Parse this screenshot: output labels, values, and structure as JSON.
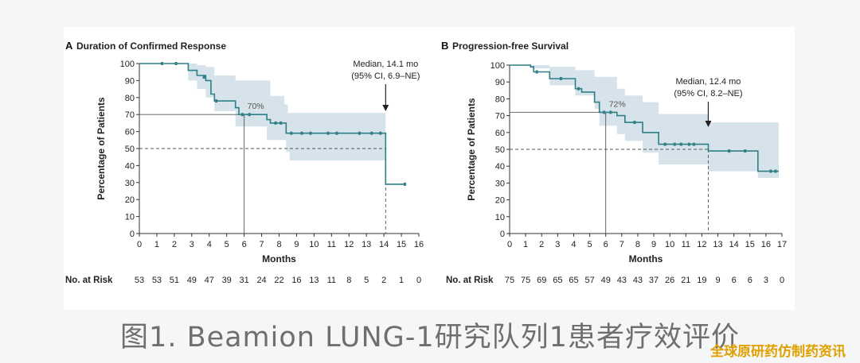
{
  "caption": "图1. Beamion LUNG-1研究队列1患者疗效评价",
  "watermark": "全球原研药仿制药资讯",
  "colors": {
    "line": "#2f7f86",
    "band": "#d6e3ea",
    "axis": "#333333",
    "ref": "#555555"
  },
  "chart_data": [
    {
      "type": "line",
      "panel": "A",
      "title": "Duration of Confirmed Response",
      "xlabel": "Months",
      "ylabel": "Percentage of Patients",
      "xlim": [
        0,
        16
      ],
      "ylim": [
        0,
        100
      ],
      "xticks": [
        0,
        1,
        2,
        3,
        4,
        5,
        6,
        7,
        8,
        9,
        10,
        11,
        12,
        13,
        14,
        15,
        16
      ],
      "yticks": [
        0,
        10,
        20,
        30,
        40,
        50,
        60,
        70,
        80,
        90,
        100
      ],
      "curve": [
        [
          0,
          100
        ],
        [
          2.8,
          100
        ],
        [
          2.8,
          96
        ],
        [
          3.3,
          96
        ],
        [
          3.3,
          93
        ],
        [
          3.8,
          93
        ],
        [
          3.8,
          90
        ],
        [
          4.1,
          90
        ],
        [
          4.1,
          82
        ],
        [
          4.3,
          82
        ],
        [
          4.3,
          78
        ],
        [
          5.5,
          78
        ],
        [
          5.5,
          74
        ],
        [
          5.7,
          74
        ],
        [
          5.7,
          70
        ],
        [
          7.3,
          70
        ],
        [
          7.3,
          67
        ],
        [
          7.5,
          67
        ],
        [
          7.5,
          65
        ],
        [
          8.4,
          65
        ],
        [
          8.4,
          59
        ],
        [
          14.1,
          59
        ],
        [
          14.1,
          29
        ],
        [
          15.2,
          29
        ]
      ],
      "ci_upper": [
        [
          0,
          100
        ],
        [
          2.8,
          100
        ],
        [
          3.3,
          99
        ],
        [
          3.8,
          98
        ],
        [
          4.3,
          93
        ],
        [
          5.5,
          90
        ],
        [
          7.5,
          81
        ],
        [
          8.3,
          76
        ],
        [
          8.5,
          71
        ],
        [
          14.1,
          71
        ]
      ],
      "ci_lower": [
        [
          0,
          100
        ],
        [
          2.8,
          90
        ],
        [
          3.3,
          85
        ],
        [
          3.8,
          80
        ],
        [
          4.3,
          72
        ],
        [
          5.5,
          63
        ],
        [
          7.3,
          55
        ],
        [
          8.4,
          48
        ],
        [
          8.6,
          43
        ],
        [
          14.1,
          43
        ]
      ],
      "censored": [
        [
          1.3,
          100
        ],
        [
          2.1,
          100
        ],
        [
          3.7,
          92
        ],
        [
          4.4,
          78
        ],
        [
          5.9,
          70
        ],
        [
          6.3,
          70
        ],
        [
          7.8,
          65
        ],
        [
          8.1,
          65
        ],
        [
          8.7,
          59
        ],
        [
          9.3,
          59
        ],
        [
          9.8,
          59
        ],
        [
          10.8,
          59
        ],
        [
          11.3,
          59
        ],
        [
          12.6,
          59
        ],
        [
          13.3,
          59
        ],
        [
          13.8,
          59
        ],
        [
          15.2,
          29
        ]
      ],
      "reference": {
        "y": 70,
        "x": 6,
        "label": "70%"
      },
      "median": {
        "x": 14.1,
        "y": 50,
        "label_line1": "Median, 14.1 mo",
        "label_line2": "(95% CI, 6.9–NE)"
      },
      "risk_label": "No. at Risk",
      "at_risk": [
        53,
        53,
        51,
        49,
        47,
        39,
        31,
        24,
        22,
        16,
        13,
        11,
        8,
        5,
        2,
        1,
        0
      ]
    },
    {
      "type": "line",
      "panel": "B",
      "title": "Progression-free Survival",
      "xlabel": "Months",
      "ylabel": "Percentage of Patients",
      "xlim": [
        0,
        17
      ],
      "ylim": [
        0,
        100
      ],
      "xticks": [
        0,
        1,
        2,
        3,
        4,
        5,
        6,
        7,
        8,
        9,
        10,
        11,
        12,
        13,
        14,
        15,
        16,
        17
      ],
      "yticks": [
        0,
        10,
        20,
        30,
        40,
        50,
        60,
        70,
        80,
        90,
        100
      ],
      "curve": [
        [
          0,
          100
        ],
        [
          1.3,
          100
        ],
        [
          1.3,
          99
        ],
        [
          1.5,
          99
        ],
        [
          1.5,
          96
        ],
        [
          2.5,
          96
        ],
        [
          2.5,
          92
        ],
        [
          4.1,
          92
        ],
        [
          4.1,
          86
        ],
        [
          4.5,
          86
        ],
        [
          4.5,
          84
        ],
        [
          5.3,
          84
        ],
        [
          5.3,
          78
        ],
        [
          5.6,
          78
        ],
        [
          5.6,
          72
        ],
        [
          6.7,
          72
        ],
        [
          6.7,
          70
        ],
        [
          7.2,
          70
        ],
        [
          7.2,
          66
        ],
        [
          8.3,
          66
        ],
        [
          8.3,
          60
        ],
        [
          9.3,
          60
        ],
        [
          9.3,
          53
        ],
        [
          12.4,
          53
        ],
        [
          12.4,
          49
        ],
        [
          15.5,
          49
        ],
        [
          15.5,
          37
        ],
        [
          16.8,
          37
        ]
      ],
      "ci_upper": [
        [
          0,
          100
        ],
        [
          1.3,
          100
        ],
        [
          2.5,
          99
        ],
        [
          4.1,
          97
        ],
        [
          5.3,
          93
        ],
        [
          6.7,
          86
        ],
        [
          7.2,
          82
        ],
        [
          8.3,
          78
        ],
        [
          9.3,
          71
        ],
        [
          12.4,
          66
        ],
        [
          16.8,
          62
        ]
      ],
      "ci_lower": [
        [
          0,
          100
        ],
        [
          1.3,
          98
        ],
        [
          2.5,
          88
        ],
        [
          4.1,
          82
        ],
        [
          5.3,
          74
        ],
        [
          5.6,
          64
        ],
        [
          6.7,
          59
        ],
        [
          7.2,
          55
        ],
        [
          8.3,
          48
        ],
        [
          9.3,
          41
        ],
        [
          12.4,
          37
        ],
        [
          15.5,
          33
        ],
        [
          16.8,
          33
        ]
      ],
      "censored": [
        [
          1.7,
          96
        ],
        [
          3.2,
          92
        ],
        [
          4.3,
          86
        ],
        [
          5.9,
          72
        ],
        [
          6.3,
          72
        ],
        [
          7.8,
          66
        ],
        [
          9.7,
          53
        ],
        [
          10.3,
          53
        ],
        [
          10.7,
          53
        ],
        [
          11.2,
          53
        ],
        [
          11.5,
          53
        ],
        [
          13.7,
          49
        ],
        [
          14.7,
          49
        ],
        [
          16.3,
          37
        ],
        [
          16.6,
          37
        ]
      ],
      "reference": {
        "y": 72,
        "x": 6,
        "label": "72%"
      },
      "median": {
        "x": 12.4,
        "y": 50,
        "label_line1": "Median, 12.4 mo",
        "label_line2": "(95% CI, 8.2–NE)"
      },
      "risk_label": "No. at Risk",
      "at_risk": [
        75,
        75,
        69,
        65,
        65,
        57,
        49,
        43,
        43,
        37,
        26,
        21,
        19,
        9,
        6,
        6,
        3,
        0
      ]
    }
  ]
}
